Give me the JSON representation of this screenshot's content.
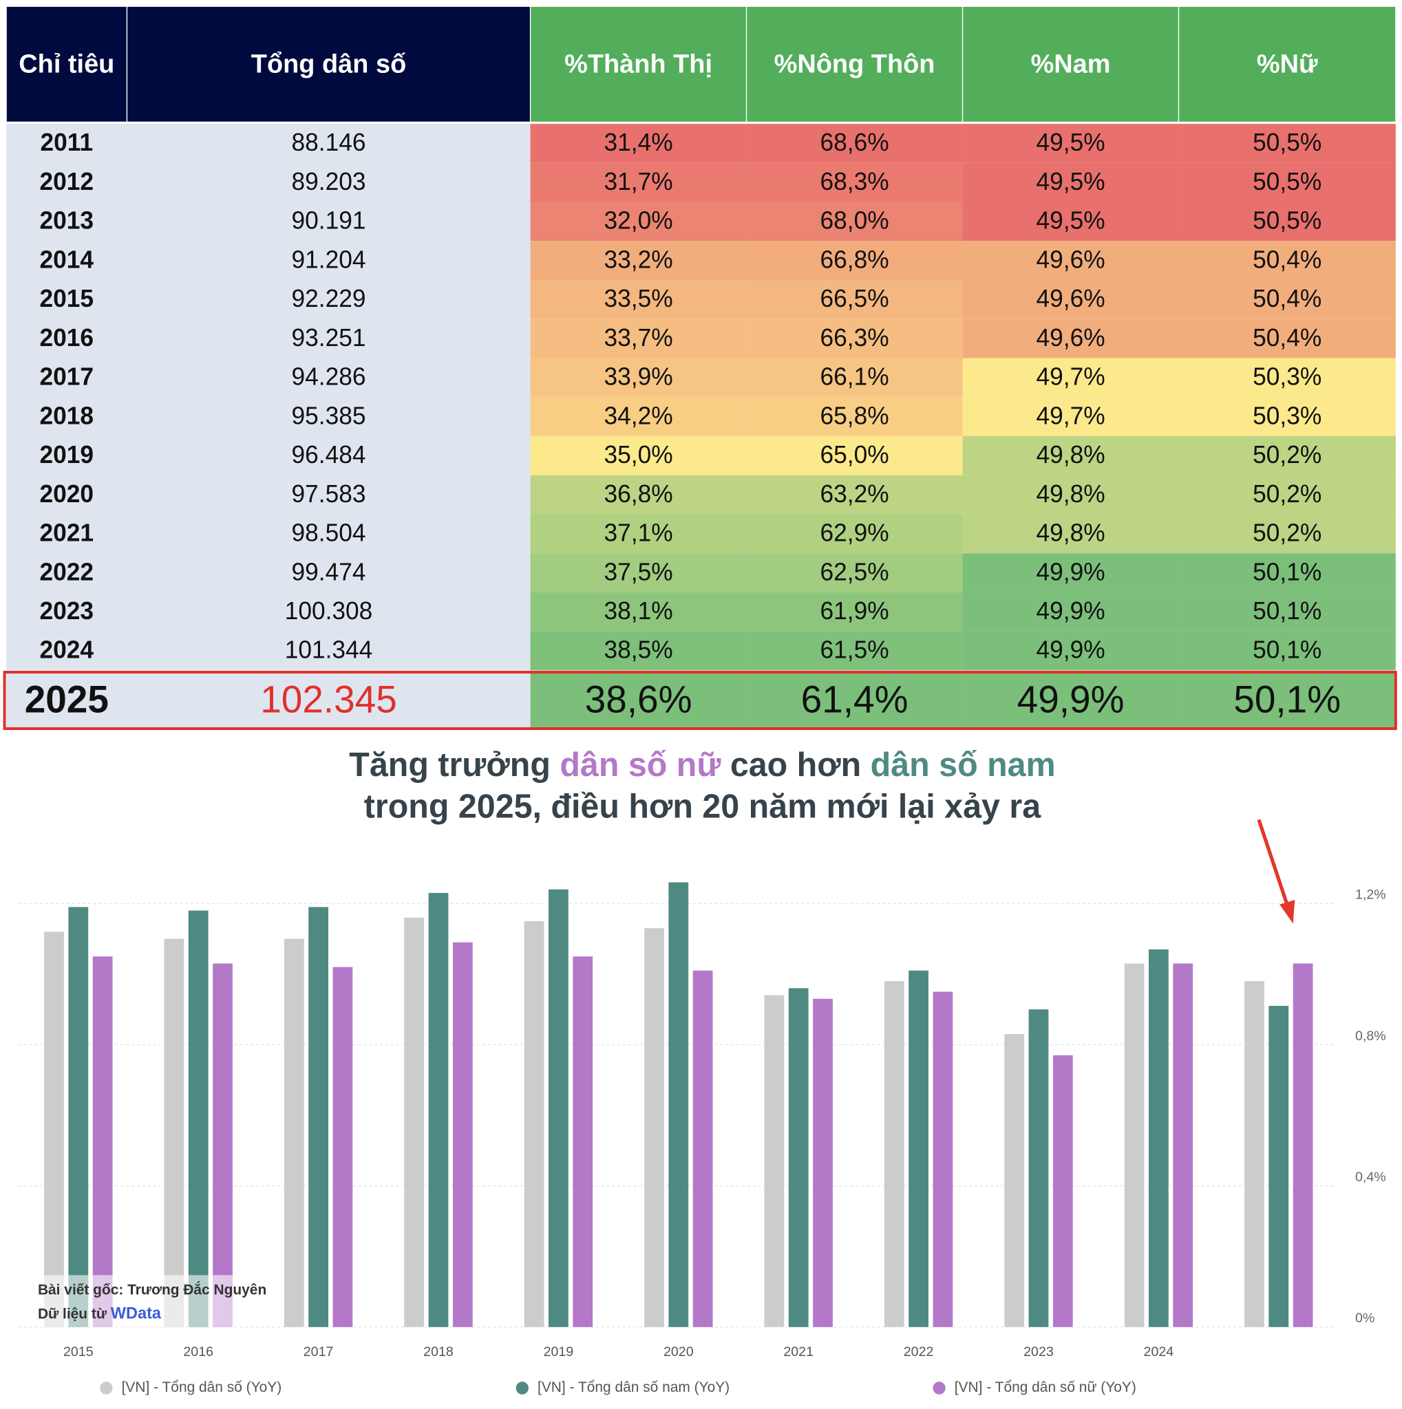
{
  "table": {
    "header": [
      "Chỉ tiêu",
      "Tổng dân số",
      "%Thành Thị",
      "%Nông Thôn",
      "%Nam",
      "%Nữ"
    ],
    "rows": [
      [
        "2011",
        "88.146",
        "31,4%",
        "68,6%",
        "49,5%",
        "50,5%"
      ],
      [
        "2012",
        "89.203",
        "31,7%",
        "68,3%",
        "49,5%",
        "50,5%"
      ],
      [
        "2013",
        "90.191",
        "32,0%",
        "68,0%",
        "49,5%",
        "50,5%"
      ],
      [
        "2014",
        "91.204",
        "33,2%",
        "66,8%",
        "49,6%",
        "50,4%"
      ],
      [
        "2015",
        "92.229",
        "33,5%",
        "66,5%",
        "49,6%",
        "50,4%"
      ],
      [
        "2016",
        "93.251",
        "33,7%",
        "66,3%",
        "49,6%",
        "50,4%"
      ],
      [
        "2017",
        "94.286",
        "33,9%",
        "66,1%",
        "49,7%",
        "50,3%"
      ],
      [
        "2018",
        "95.385",
        "34,2%",
        "65,8%",
        "49,7%",
        "50,3%"
      ],
      [
        "2019",
        "96.484",
        "35,0%",
        "65,0%",
        "49,8%",
        "50,2%"
      ],
      [
        "2020",
        "97.583",
        "36,8%",
        "63,2%",
        "49,8%",
        "50,2%"
      ],
      [
        "2021",
        "98.504",
        "37,1%",
        "62,9%",
        "49,8%",
        "50,2%"
      ],
      [
        "2022",
        "99.474",
        "37,5%",
        "62,5%",
        "49,9%",
        "50,1%"
      ],
      [
        "2023",
        "100.308",
        "38,1%",
        "61,9%",
        "49,9%",
        "50,1%"
      ],
      [
        "2024",
        "101.344",
        "38,5%",
        "61,5%",
        "49,9%",
        "50,1%"
      ],
      [
        "2025",
        "102.345",
        "38,6%",
        "61,4%",
        "49,9%",
        "50,1%"
      ]
    ],
    "heat_low_color": "#e8706d",
    "heat_mid_color": "#fce98c",
    "heat_high_color": "#7bbf7b",
    "heat_high_is_green": [
      true,
      false,
      true,
      false
    ]
  },
  "chart_data": {
    "type": "bar",
    "title": [
      [
        "Tăng trưởng ",
        "dân số nữ",
        " cao hơn ",
        "dân số nam"
      ],
      [
        "trong 2025, điều hơn 20 năm mới lại xảy ra"
      ]
    ],
    "categories": [
      "2015",
      "2016",
      "2017",
      "2018",
      "2019",
      "2020",
      "2021",
      "2022",
      "2023",
      "2024",
      null
    ],
    "series": [
      {
        "name": "[VN] - Tổng dân số (YoY)",
        "color": "#cccccc",
        "values": [
          1.12,
          1.1,
          1.1,
          1.16,
          1.15,
          1.13,
          0.94,
          0.98,
          0.83,
          1.03,
          0.98
        ]
      },
      {
        "name": "[VN] - Tổng dân số nam (YoY)",
        "color": "#4e8a82",
        "values": [
          1.19,
          1.18,
          1.19,
          1.23,
          1.24,
          1.26,
          0.96,
          1.01,
          0.9,
          1.07,
          0.91
        ]
      },
      {
        "name": "[VN] - Tổng dân số nữ (YoY)",
        "color": "#b478c8",
        "values": [
          1.05,
          1.03,
          1.02,
          1.09,
          1.05,
          1.01,
          0.93,
          0.95,
          0.77,
          1.03,
          1.03
        ]
      }
    ],
    "ylim": [
      0,
      1.6
    ],
    "yticks": [
      {
        "value": 0,
        "label": "0%"
      },
      {
        "value": 0.4,
        "label": "0,4%"
      },
      {
        "value": 0.8,
        "label": "0,8%"
      },
      {
        "value": 1.2,
        "label": "1,2%"
      }
    ],
    "grid": true,
    "watermark": [
      "Bài viết gốc: Trương Đắc Nguyên",
      "Dữ liệu từ ",
      "WData"
    ]
  }
}
